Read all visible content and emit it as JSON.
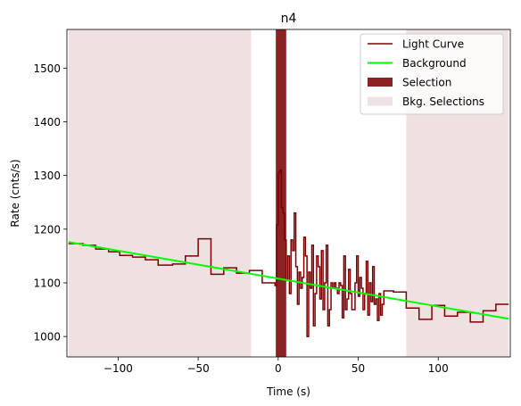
{
  "chart_data": {
    "type": "line",
    "title": "n4",
    "xlabel": "Time (s)",
    "ylabel": "Rate (cnts/s)",
    "xlim": [
      -132,
      145
    ],
    "ylim": [
      962,
      1572
    ],
    "xticks": [
      -100,
      -50,
      0,
      50,
      100
    ],
    "xtick_labels": [
      "−100",
      "−50",
      "0",
      "50",
      "100"
    ],
    "yticks": [
      1000,
      1100,
      1200,
      1300,
      1400,
      1500
    ],
    "ytick_labels": [
      "1000",
      "1100",
      "1200",
      "1300",
      "1400",
      "1500"
    ],
    "grid": false,
    "legend_position": "upper right",
    "colors": {
      "light_curve": "#800000",
      "background": "#00ff00",
      "selection": "#8b2323",
      "bkg_selection": "#efe1e1"
    },
    "legend": [
      {
        "label": "Light Curve",
        "kind": "line",
        "color": "#800000"
      },
      {
        "label": "Background",
        "kind": "line",
        "color": "#00ff00"
      },
      {
        "label": "Selection",
        "kind": "patch",
        "color": "#8b2323"
      },
      {
        "label": "Bkg. Selections",
        "kind": "patch",
        "color": "#efe1e1"
      }
    ],
    "background_fit": {
      "x": [
        -131,
        144
      ],
      "y": [
        1176,
        1033
      ]
    },
    "selection_interval": [
      -1.5,
      5.0
    ],
    "bkg_selection_intervals": [
      [
        -131,
        -17
      ],
      [
        80,
        144
      ]
    ],
    "light_curve_step": {
      "x": [
        -131,
        -122,
        -114,
        -106,
        -99,
        -91,
        -83,
        -75,
        -66,
        -58,
        -50,
        -42,
        -34,
        -26,
        -18,
        -10,
        -2,
        -1,
        0,
        1,
        2,
        3,
        4,
        5,
        6,
        7,
        8,
        9,
        10,
        11,
        12,
        13,
        14,
        15,
        16,
        17,
        18,
        19,
        20,
        21,
        22,
        23,
        24,
        25,
        26,
        27,
        28,
        29,
        30,
        31,
        32,
        33,
        34,
        35,
        36,
        37,
        38,
        39,
        40,
        41,
        42,
        43,
        44,
        45,
        46,
        47,
        48,
        49,
        50,
        51,
        52,
        53,
        54,
        55,
        56,
        57,
        58,
        59,
        60,
        61,
        62,
        63,
        64,
        65,
        66,
        72,
        80,
        88,
        96,
        104,
        112,
        120,
        128,
        136,
        144
      ],
      "y": [
        1173,
        1170,
        1163,
        1158,
        1151,
        1148,
        1143,
        1133,
        1135,
        1150,
        1182,
        1116,
        1128,
        1118,
        1123,
        1100,
        1095,
        1208,
        1305,
        1310,
        1240,
        1230,
        1180,
        1105,
        1150,
        1080,
        1180,
        1160,
        1230,
        1130,
        1060,
        1120,
        1090,
        1110,
        1185,
        1150,
        1000,
        1120,
        1090,
        1170,
        1020,
        1080,
        1150,
        1130,
        1070,
        1160,
        1050,
        1100,
        1170,
        1020,
        1050,
        1100,
        1090,
        1100,
        1090,
        1080,
        1100,
        1095,
        1035,
        1150,
        1050,
        1070,
        1125,
        1080,
        1050,
        1050,
        1100,
        1150,
        1075,
        1110,
        1090,
        1050,
        1080,
        1140,
        1040,
        1100,
        1065,
        1130,
        1060,
        1070,
        1030,
        1080,
        1040,
        1060,
        1085,
        1083,
        1053,
        1032,
        1058,
        1038,
        1045,
        1027,
        1048,
        1060,
        1060
      ]
    }
  }
}
